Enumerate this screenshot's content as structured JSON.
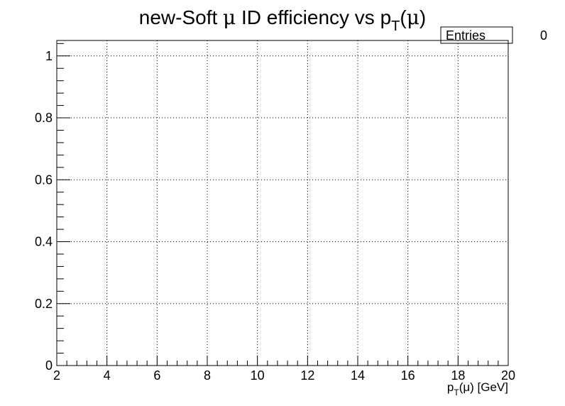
{
  "chart_data": {
    "type": "line",
    "title": {
      "prefix": "new-Soft ",
      "mu": "μ",
      "middle": " ID efficiency vs p",
      "sub": "T",
      "open": "(",
      "mu2": "μ",
      "close": ")"
    },
    "xlabel": {
      "p": "p",
      "sub": "T",
      "rest": "(μ) [GeV]"
    },
    "ylabel": "",
    "xlim": [
      2,
      20
    ],
    "ylim": [
      0,
      1.05
    ],
    "x_ticks": [
      2,
      4,
      6,
      8,
      10,
      12,
      14,
      16,
      18,
      20
    ],
    "x_tick_labels": [
      "2",
      "4",
      "6",
      "8",
      "10",
      "12",
      "14",
      "16",
      "18",
      "20"
    ],
    "y_ticks": [
      0,
      0.2,
      0.4,
      0.6,
      0.8,
      1
    ],
    "y_tick_labels": [
      "0",
      "0.2",
      "0.4",
      "0.6",
      "0.8",
      "1"
    ],
    "grid": true,
    "series": [],
    "stats": {
      "label": "Entries",
      "value": "0"
    }
  }
}
